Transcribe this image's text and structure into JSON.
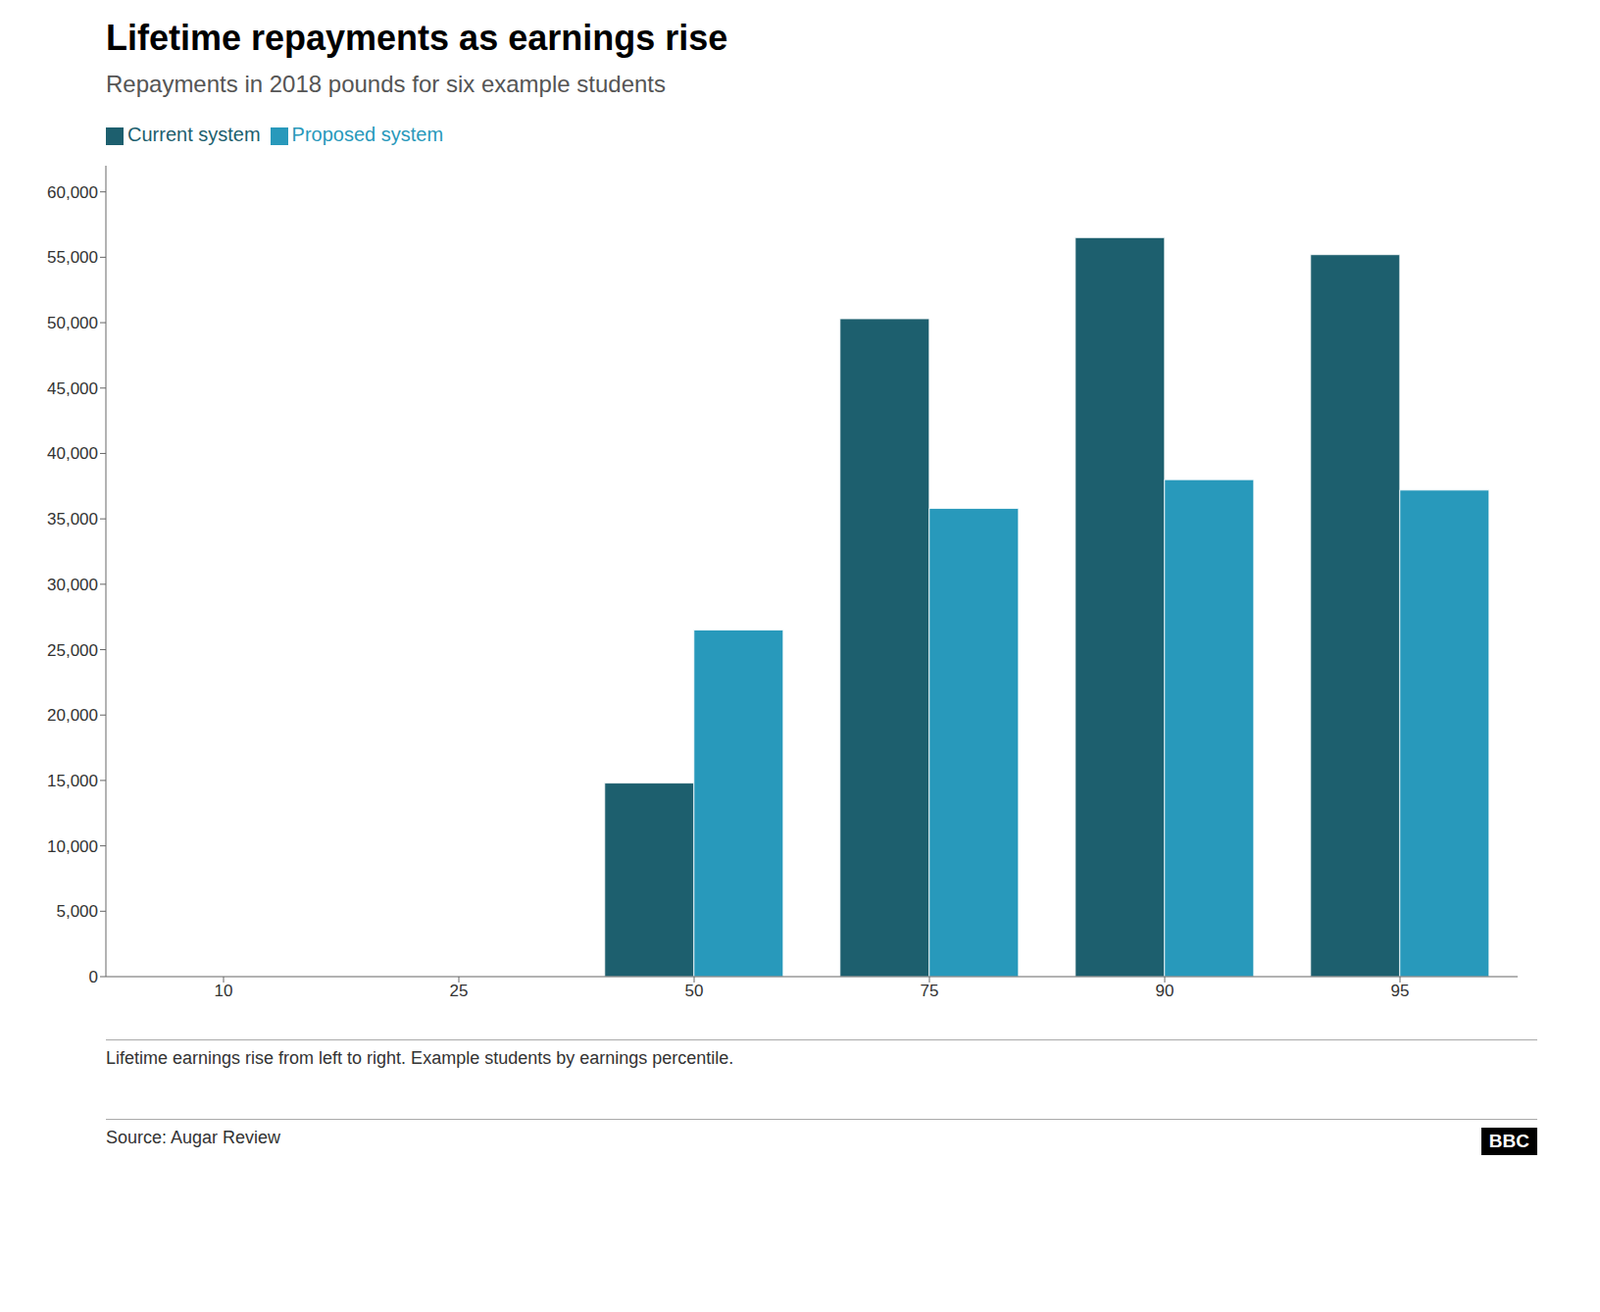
{
  "chart_data": {
    "type": "bar",
    "title": "Lifetime repayments as earnings rise",
    "subtitle": "Repayments in 2018 pounds for six example students",
    "annotations": [
      "Lifetime earnings rise from left to right. Example students by earnings percentile.",
      "Source: Augar Review",
      "BBC"
    ],
    "categories": [
      "10",
      "25",
      "50",
      "75",
      "90",
      "95"
    ],
    "series": [
      {
        "name": "Current system",
        "color": "#1d5f6e",
        "values": [
          0,
          0,
          14800,
          50300,
          56500,
          55200
        ]
      },
      {
        "name": "Proposed system",
        "color": "#2899bb",
        "values": [
          0,
          0,
          26500,
          35800,
          38000,
          37200
        ]
      }
    ],
    "ylim": [
      0,
      62000
    ],
    "yticks": [
      0,
      {
        "value": 5000,
        "label": "5,000"
      },
      {
        "value": 10000,
        "label": "10,000"
      },
      {
        "value": 15000,
        "label": "15,000"
      },
      {
        "value": 20000,
        "label": "20,000"
      },
      {
        "value": 25000,
        "label": "25,000"
      },
      {
        "value": 30000,
        "label": "30,000"
      },
      {
        "value": 35000,
        "label": "35,000"
      },
      {
        "value": 40000,
        "label": "40,000"
      },
      {
        "value": 45000,
        "label": "45,000"
      },
      {
        "value": 50000,
        "label": "50,000"
      },
      {
        "value": 55000,
        "label": "55,000"
      },
      {
        "value": 60000,
        "label": "60,000"
      }
    ],
    "grid": false,
    "legend": "upper left"
  }
}
